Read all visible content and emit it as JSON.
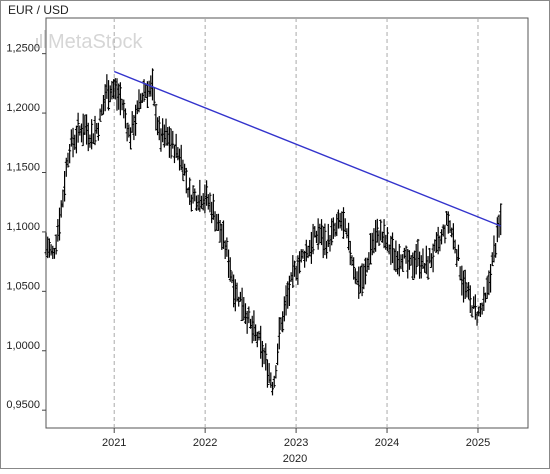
{
  "chart_data": {
    "type": "bar",
    "style": "OHLC price bars with trendline",
    "title": "EUR / USD",
    "watermark": "MetaStock",
    "xlabel": "2020",
    "ylabel": "",
    "x_ticks": [
      "2021",
      "2022",
      "2023",
      "2024",
      "2025"
    ],
    "x_tick_dates": [
      2021.0,
      2022.0,
      2023.0,
      2024.0,
      2025.0
    ],
    "y_ticks": [
      "1,2500",
      "1,2000",
      "1,1500",
      "1,1000",
      "1,0500",
      "1,0000",
      "0,9500"
    ],
    "y_tick_values": [
      1.25,
      1.2,
      1.15,
      1.1,
      1.05,
      1.0,
      0.95
    ],
    "xlim": [
      2020.25,
      2025.55
    ],
    "ylim": [
      0.935,
      1.28
    ],
    "grid": "vertical dashed at year ticks",
    "bar_color": "#000000",
    "trendline_color": "#3333cc",
    "trendline": {
      "x": [
        2021.0,
        2025.25
      ],
      "y": [
        1.235,
        1.105
      ]
    },
    "series": [
      {
        "x": [
          2020.25,
          2020.33,
          2020.42,
          2020.5,
          2020.58,
          2020.67,
          2020.75,
          2020.83,
          2020.92,
          2021.0,
          2021.08,
          2021.17,
          2021.25,
          2021.33,
          2021.42,
          2021.5,
          2021.58,
          2021.67,
          2021.75,
          2021.83,
          2021.92,
          2022.0,
          2022.08,
          2022.17,
          2022.25,
          2022.33,
          2022.42,
          2022.5,
          2022.58,
          2022.67,
          2022.75,
          2022.83,
          2022.92,
          2023.0,
          2023.08,
          2023.17,
          2023.25,
          2023.33,
          2023.42,
          2023.5,
          2023.58,
          2023.67,
          2023.75,
          2023.83,
          2023.92,
          2024.0,
          2024.08,
          2024.17,
          2024.25,
          2024.33,
          2024.42,
          2024.5,
          2024.58,
          2024.67,
          2024.75,
          2024.83,
          2024.92,
          2025.0,
          2025.08,
          2025.17,
          2025.25
        ],
        "y": [
          1.09,
          1.08,
          1.12,
          1.17,
          1.18,
          1.19,
          1.18,
          1.19,
          1.22,
          1.22,
          1.21,
          1.18,
          1.2,
          1.22,
          1.22,
          1.18,
          1.18,
          1.17,
          1.16,
          1.13,
          1.13,
          1.13,
          1.12,
          1.1,
          1.08,
          1.05,
          1.04,
          1.02,
          1.01,
          0.99,
          0.97,
          1.02,
          1.05,
          1.07,
          1.08,
          1.09,
          1.1,
          1.09,
          1.1,
          1.11,
          1.09,
          1.06,
          1.06,
          1.09,
          1.1,
          1.09,
          1.08,
          1.08,
          1.07,
          1.08,
          1.07,
          1.08,
          1.09,
          1.11,
          1.09,
          1.06,
          1.04,
          1.03,
          1.04,
          1.08,
          1.11
        ]
      }
    ]
  }
}
